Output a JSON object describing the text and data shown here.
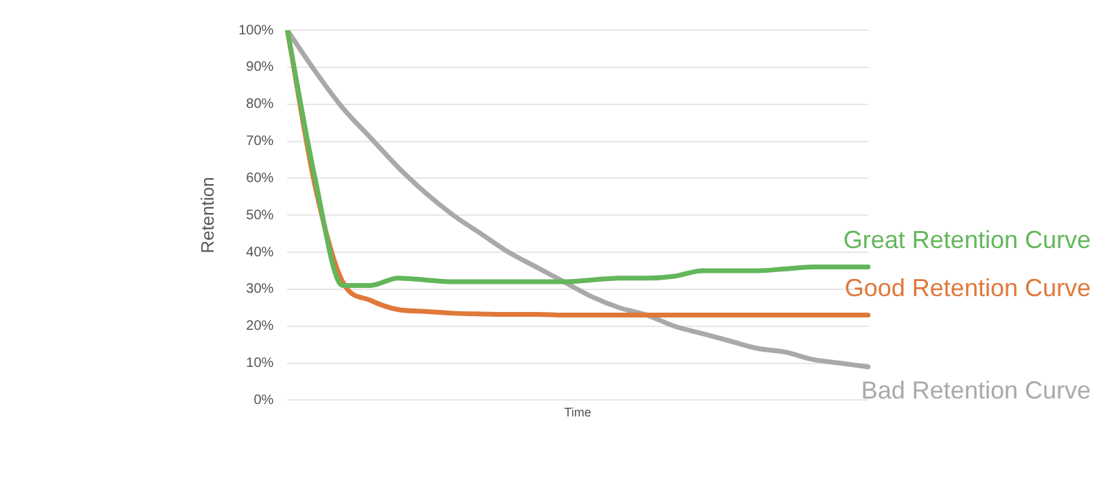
{
  "chart_data": {
    "type": "line",
    "xlabel": "Time",
    "ylabel": "Retention",
    "categories": [
      null,
      null,
      null,
      null,
      null,
      null,
      null,
      null,
      null,
      null,
      null,
      null,
      null,
      null,
      null,
      null,
      null,
      null,
      null,
      null,
      null,
      null
    ],
    "series": [
      {
        "name": "Great Retention Curve",
        "color": "#63b65a",
        "values": [
          100,
          60,
          31,
          31,
          33,
          32.5,
          32,
          32,
          32,
          32,
          32,
          32.5,
          33,
          33,
          33.5,
          35,
          35,
          35,
          35.5,
          36,
          36,
          36
        ]
      },
      {
        "name": "Good Retention Curve",
        "color": "#e0783a",
        "values": [
          100,
          58,
          32,
          27,
          24.5,
          24,
          23.5,
          23.3,
          23.2,
          23.2,
          23,
          23,
          23,
          23,
          23,
          23,
          23,
          23,
          23,
          23,
          23,
          23
        ]
      },
      {
        "name": "Bad Retention Curve",
        "color": "#a9a9a9",
        "values": [
          100,
          89,
          79,
          71,
          63,
          56,
          50,
          45,
          40,
          36,
          32,
          28,
          25,
          23,
          20,
          18,
          16,
          14,
          13,
          11,
          10,
          9
        ]
      }
    ],
    "ylim": [
      0,
      100
    ],
    "yticks": [
      {
        "value": 0,
        "label": "0%"
      },
      {
        "value": 10,
        "label": "10%"
      },
      {
        "value": 20,
        "label": "20%"
      },
      {
        "value": 30,
        "label": "30%"
      },
      {
        "value": 40,
        "label": "40%"
      },
      {
        "value": 50,
        "label": "50%"
      },
      {
        "value": 60,
        "label": "60%"
      },
      {
        "value": 70,
        "label": "70%"
      },
      {
        "value": 80,
        "label": "80%"
      },
      {
        "value": 90,
        "label": "90%"
      },
      {
        "value": 100,
        "label": "100%"
      }
    ],
    "grid": "y",
    "legend": false,
    "tick_labels": "y",
    "marker": "none",
    "line_style": "solid"
  }
}
